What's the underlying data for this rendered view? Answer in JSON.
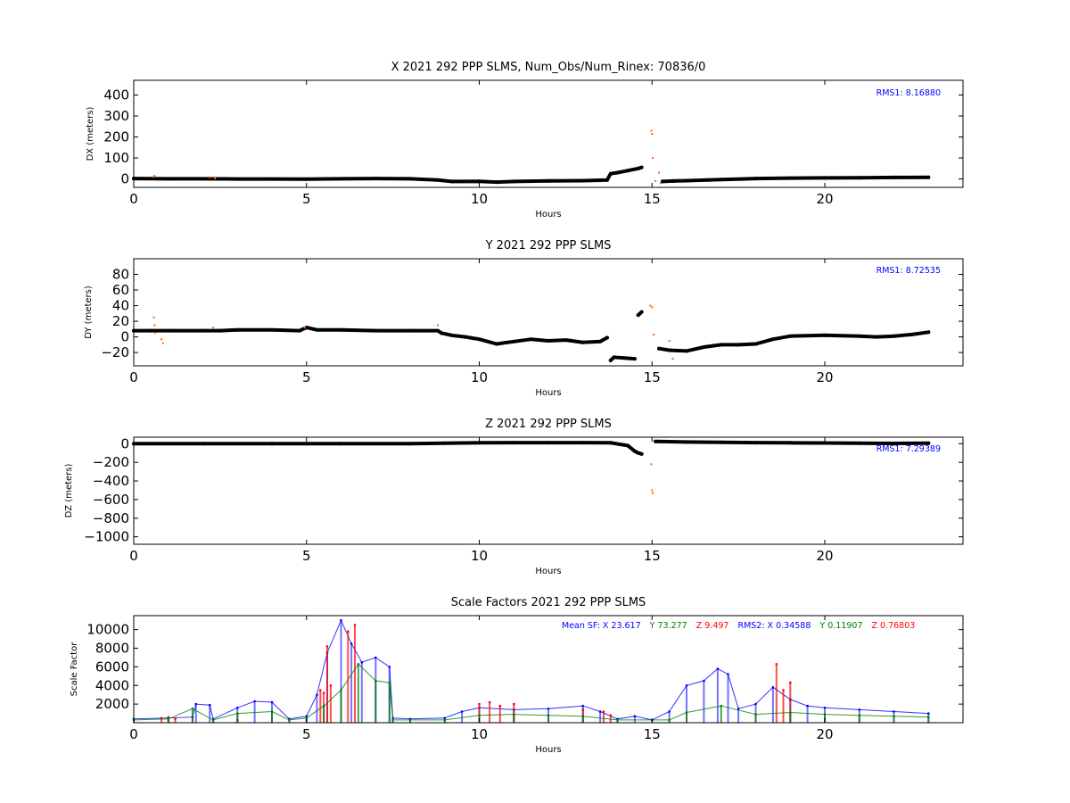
{
  "chart_data": [
    {
      "type": "scatter",
      "title": "X 2021 292 PPP  SLMS, Num_Obs/Num_Rinex: 70836/0",
      "xlabel": "Hours",
      "ylabel": "DX (meters)",
      "xlim": [
        0,
        24
      ],
      "ylim": [
        -40,
        470
      ],
      "x_ticks": [
        "0",
        "5",
        "10",
        "15",
        "20"
      ],
      "y_ticks": [
        "0",
        "100",
        "200",
        "300",
        "400"
      ],
      "annotation": "RMS1:  8.16880",
      "annotation_color": "#0000ff",
      "series_colors": [
        "#000000",
        "#ff6600"
      ],
      "series": [
        {
          "x": [
            0,
            1,
            2,
            3,
            4,
            5,
            6,
            7,
            8,
            8.8,
            9.2,
            10,
            10.5,
            11,
            12,
            13,
            13.7,
            13.8,
            14,
            14.3,
            14.6,
            14.7,
            15.3,
            15.6,
            16,
            16.6,
            17,
            17.6,
            18,
            19,
            20,
            21,
            22,
            23
          ],
          "y": [
            2,
            1,
            1,
            0,
            0,
            -1,
            1,
            2,
            1,
            -5,
            -12,
            -11,
            -15,
            -12,
            -9,
            -8,
            -5,
            25,
            30,
            40,
            50,
            55,
            -12,
            -10,
            -8,
            -5,
            -3,
            0,
            2,
            4,
            5,
            6,
            7,
            8
          ]
        },
        {
          "x": [
            0.58,
            0.6,
            2.2,
            2.35,
            14.98,
            15.0,
            15.02,
            15.1,
            15.2,
            15.25
          ],
          "y": [
            10,
            15,
            8,
            3,
            230,
            215,
            100,
            -10,
            30,
            -20
          ]
        }
      ]
    },
    {
      "type": "scatter",
      "title": "Y 2021 292 PPP  SLMS",
      "xlabel": "Hours",
      "ylabel": "DY (meters)",
      "xlim": [
        0,
        24
      ],
      "ylim": [
        -37,
        100
      ],
      "x_ticks": [
        "0",
        "5",
        "10",
        "15",
        "20"
      ],
      "y_ticks": [
        "−20",
        "0",
        "20",
        "40",
        "60",
        "80"
      ],
      "annotation": "RMS1:  8.72535",
      "annotation_color": "#0000ff",
      "series_colors": [
        "#000000",
        "#ff6600"
      ],
      "series": [
        {
          "x": [
            0,
            0.5,
            1,
            2,
            2.5,
            3,
            4,
            4.8,
            5,
            5.3,
            6,
            7,
            8,
            8.8,
            8.9,
            9.2,
            9.6,
            10,
            10.5,
            11,
            11.5,
            12,
            12.5,
            13,
            13.5,
            13.7,
            13.8,
            13.9,
            14.2,
            14.5,
            14.6,
            14.7,
            15.2,
            15.5,
            16,
            16.5,
            17,
            17.5,
            18,
            18.5,
            19,
            20,
            21,
            21.5,
            22,
            22.5,
            23
          ],
          "y": [
            8,
            8,
            8,
            8,
            8,
            9,
            9,
            8,
            12,
            9,
            9,
            8,
            8,
            8,
            5,
            2,
            0,
            -3,
            -9,
            -6,
            -3,
            -5,
            -4,
            -7,
            -6,
            -1,
            -30,
            -26,
            -27,
            -28,
            28,
            32,
            -15,
            -17,
            -18,
            -13,
            -10,
            -10,
            -9,
            -3,
            1,
            2,
            1,
            0,
            1,
            3,
            6
          ]
        },
        {
          "x": [
            0.58,
            0.6,
            0.62,
            0.8,
            0.85,
            2.3,
            4.95,
            8.8,
            14.95,
            15.0,
            15.05,
            15.5,
            15.6
          ],
          "y": [
            25,
            15,
            5,
            -3,
            -8,
            12,
            12,
            15,
            40,
            38,
            3,
            -5,
            -28
          ]
        }
      ]
    },
    {
      "type": "scatter",
      "title": "Z 2021 292 PPP  SLMS",
      "xlabel": "Hours",
      "ylabel": "DZ (meters)",
      "xlim": [
        0,
        24
      ],
      "ylim": [
        -1080,
        70
      ],
      "x_ticks": [
        "0",
        "5",
        "10",
        "15",
        "20"
      ],
      "y_ticks": [
        "−1000",
        "−800",
        "−600",
        "−400",
        "−200",
        "0"
      ],
      "annotation": "RMS1:  7.29389",
      "annotation_color": "#0000ff",
      "series_colors": [
        "#000000",
        "#ff6600"
      ],
      "series": [
        {
          "x": [
            0,
            2,
            4,
            6,
            8,
            9,
            10,
            11,
            12,
            13,
            13.8,
            14.3,
            14.5,
            14.6,
            14.7,
            15.1,
            15.5,
            16,
            17,
            18,
            19,
            20,
            21,
            22,
            23
          ],
          "y": [
            0,
            0,
            0,
            0,
            0,
            5,
            10,
            12,
            12,
            12,
            10,
            -20,
            -80,
            -100,
            -110,
            25,
            22,
            18,
            15,
            12,
            10,
            8,
            5,
            3,
            5
          ]
        },
        {
          "x": [
            14.98,
            15.0,
            15.02
          ],
          "y": [
            -220,
            -500,
            -530
          ]
        }
      ]
    },
    {
      "type": "scatter",
      "title": "Scale Factors 2021 292 PPP  SLMS",
      "xlabel": "Hours",
      "ylabel": "Scale Factor",
      "xlim": [
        0,
        24
      ],
      "ylim": [
        0,
        11500
      ],
      "x_ticks": [
        "0",
        "5",
        "10",
        "15",
        "20"
      ],
      "y_ticks": [
        "2000",
        "4000",
        "6000",
        "8000",
        "10000"
      ],
      "legend_segments": [
        {
          "text": "Mean SF: X  23.617",
          "color": "#0000ff"
        },
        {
          "text": "Y  73.277",
          "color": "#008000"
        },
        {
          "text": "Z   9.497",
          "color": "#ff0000"
        },
        {
          "text": "RMS2: X  0.34588",
          "color": "#0000ff"
        },
        {
          "text": "Y  0.11907",
          "color": "#008000"
        },
        {
          "text": "Z  0.76803",
          "color": "#ff0000"
        }
      ],
      "series_colors": [
        "#0000ff",
        "#ff0000",
        "#008000"
      ],
      "series": [
        {
          "x": [
            0,
            1,
            1.7,
            1.8,
            2.2,
            2.3,
            3,
            3.5,
            4,
            4.5,
            5,
            5.3,
            5.6,
            6,
            6.3,
            6.6,
            7,
            7.4,
            7.5,
            8,
            9,
            9.5,
            10,
            11,
            12,
            13,
            13.5,
            14,
            14.5,
            15,
            15.5,
            16,
            16.5,
            16.9,
            17.2,
            17.5,
            18,
            18.5,
            19,
            19.5,
            20,
            21,
            22,
            23
          ],
          "y": [
            400,
            500,
            600,
            2000,
            1900,
            400,
            1600,
            2300,
            2200,
            400,
            700,
            3000,
            7500,
            11000,
            8500,
            6500,
            7000,
            6000,
            500,
            400,
            500,
            1200,
            1600,
            1400,
            1500,
            1800,
            1200,
            400,
            700,
            300,
            1200,
            4000,
            4500,
            5800,
            5200,
            1500,
            2000,
            3800,
            2500,
            1800,
            1600,
            1400,
            1200,
            1000
          ]
        },
        {
          "x": [
            0.8,
            1,
            1.2,
            3,
            5.4,
            5.5,
            5.6,
            5.7,
            6.2,
            6.4,
            10,
            10.3,
            10.6,
            11,
            13,
            13.6,
            13.8,
            18.6,
            18.8,
            19
          ],
          "y": [
            500,
            600,
            400,
            300,
            3500,
            3200,
            8200,
            4000,
            9800,
            10500,
            2000,
            2200,
            1800,
            2000,
            1400,
            1200,
            800,
            6300,
            3500,
            4300
          ]
        },
        {
          "x": [
            0,
            1,
            1.7,
            2.3,
            3,
            4,
            4.5,
            5,
            5.5,
            6,
            6.5,
            7,
            7.4,
            7.5,
            8,
            9,
            10,
            11,
            12,
            13,
            14,
            15.5,
            16,
            17,
            18,
            19,
            20,
            21,
            22,
            23
          ],
          "y": [
            300,
            400,
            1500,
            300,
            1000,
            1200,
            300,
            500,
            1800,
            3500,
            6300,
            4500,
            4300,
            300,
            300,
            300,
            800,
            900,
            800,
            700,
            300,
            300,
            1100,
            1800,
            900,
            1100,
            900,
            800,
            700,
            600
          ]
        }
      ]
    }
  ]
}
